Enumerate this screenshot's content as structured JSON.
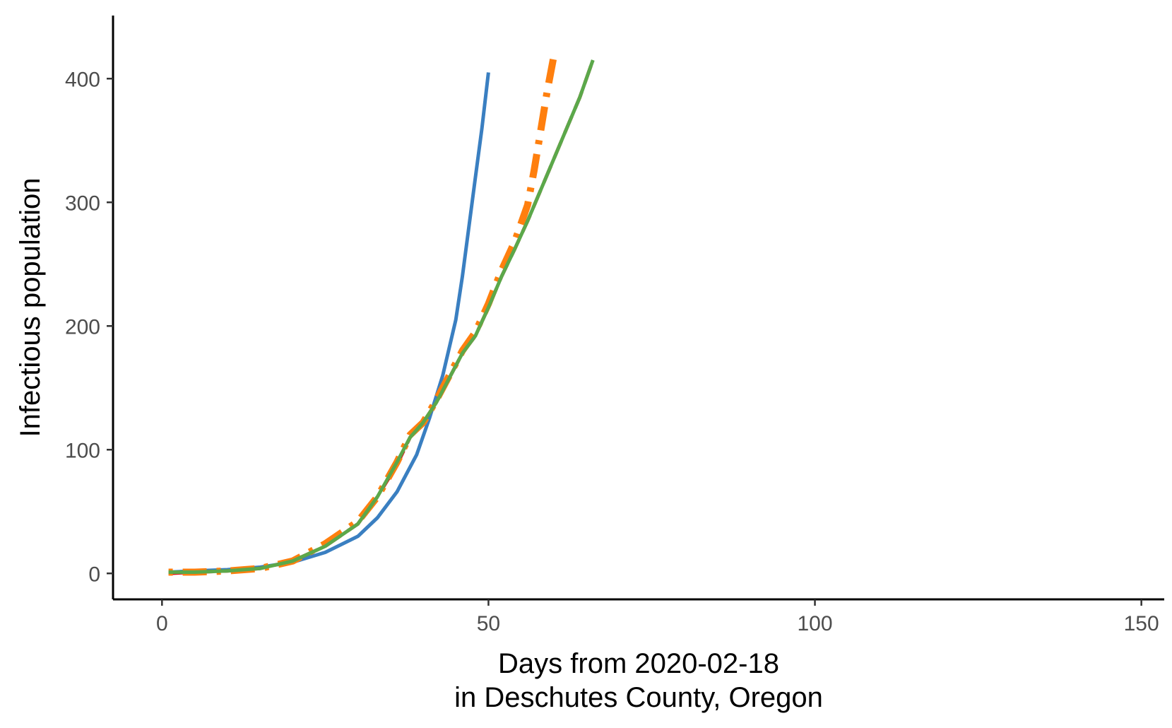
{
  "chart_data": {
    "type": "line",
    "title": "",
    "xlabel_lines": [
      "Days from 2020-02-18",
      "in Deschutes County, Oregon"
    ],
    "ylabel": "Infectious population",
    "xlim": [
      -7.5,
      153.5
    ],
    "ylim": [
      -21,
      451
    ],
    "x_ticks": [
      0,
      50,
      100,
      150
    ],
    "y_ticks": [
      0,
      100,
      200,
      300,
      400
    ],
    "grid": false,
    "legend": "none",
    "series": [
      {
        "name": "blue-solid",
        "color": "#3a7fc1",
        "dash": "solid",
        "x": [
          1,
          5,
          10,
          15,
          20,
          25,
          30,
          33,
          36,
          39,
          41,
          43,
          45,
          46,
          47,
          48,
          49,
          50
        ],
        "y": [
          1,
          2,
          3,
          5,
          9,
          17,
          30,
          45,
          66,
          96,
          126,
          160,
          205,
          240,
          280,
          320,
          360,
          405
        ]
      },
      {
        "name": "red-dashed",
        "color": "#d7191c",
        "dash": "dashed",
        "x": [
          1,
          5,
          10,
          15,
          20,
          25,
          30,
          33,
          36,
          38,
          40,
          42,
          44,
          46,
          48,
          50,
          52,
          54,
          56,
          58,
          60,
          62,
          64,
          66
        ],
        "y": [
          0,
          1,
          2,
          4,
          10,
          22,
          40,
          62,
          88,
          110,
          122,
          138,
          158,
          178,
          192,
          215,
          240,
          262,
          285,
          310,
          335,
          360,
          385,
          415
        ]
      },
      {
        "name": "orange-dotdash",
        "color": "#ff7f0e",
        "dash": "dotdash",
        "x": [
          1,
          5,
          10,
          15,
          20,
          25,
          30,
          33,
          36,
          38,
          40,
          42,
          44,
          46,
          48,
          50,
          52,
          54,
          56,
          57,
          58,
          59,
          60
        ],
        "y": [
          1,
          1,
          2,
          4,
          10,
          24,
          42,
          62,
          90,
          112,
          122,
          140,
          160,
          180,
          195,
          218,
          245,
          268,
          298,
          326,
          358,
          390,
          418
        ]
      },
      {
        "name": "green-solid",
        "color": "#5ba84a",
        "dash": "solid",
        "x": [
          1,
          5,
          10,
          15,
          20,
          25,
          30,
          33,
          36,
          38,
          40,
          42,
          44,
          46,
          48,
          50,
          52,
          54,
          56,
          58,
          60,
          62,
          64,
          66
        ],
        "y": [
          1,
          1,
          2,
          4,
          10,
          22,
          40,
          62,
          90,
          110,
          122,
          138,
          158,
          178,
          192,
          215,
          240,
          262,
          285,
          310,
          335,
          360,
          385,
          415
        ]
      }
    ]
  }
}
